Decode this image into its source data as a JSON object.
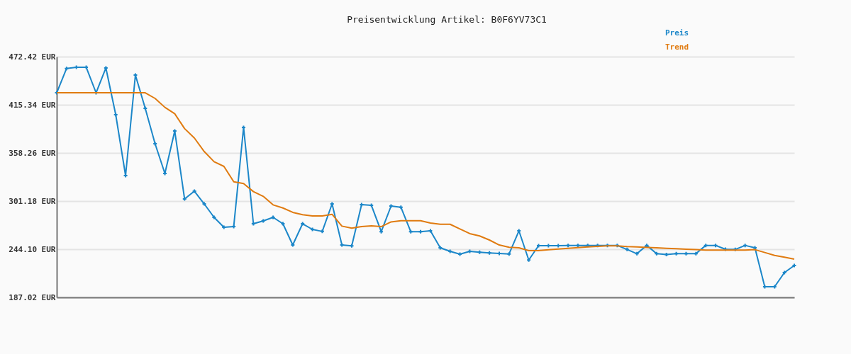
{
  "chart_data": {
    "type": "line",
    "title": "Preisentwicklung Artikel: B0F6YV73C1",
    "categories": [
      null,
      null,
      null,
      null,
      null,
      null,
      null,
      null,
      null,
      null,
      null,
      null,
      null,
      null,
      null,
      null,
      null,
      null,
      null,
      null,
      null,
      null,
      null,
      null,
      null,
      null,
      null,
      null,
      null,
      null,
      null,
      null,
      null,
      null,
      null,
      null,
      null,
      null,
      null,
      null,
      null,
      null,
      null,
      null,
      null,
      null,
      null,
      null,
      null,
      null,
      null,
      null,
      null,
      null,
      null,
      null,
      null,
      null,
      null,
      null,
      null,
      null,
      null,
      null,
      null,
      null,
      null,
      null,
      null,
      null,
      null,
      null,
      null,
      null,
      null,
      null
    ],
    "series": [
      {
        "name": "Preis",
        "color": "#1c87c9",
        "marker": "cross",
        "values": [
          429.6,
          458.4,
          459.8,
          459.8,
          429.6,
          459.0,
          403.6,
          331.4,
          450.6,
          411.1,
          369.2,
          333.9,
          384.3,
          303.7,
          312.9,
          297.8,
          281.9,
          270.1,
          271.0,
          388.5,
          274.3,
          277.7,
          281.9,
          274.3,
          249.1,
          274.3,
          267.6,
          265.2,
          297.8,
          249.1,
          248.1,
          297.0,
          296.1,
          264.9,
          295.3,
          293.9,
          264.9,
          264.9,
          265.9,
          245.8,
          241.6,
          238.2,
          241.6,
          240.5,
          239.7,
          239.1,
          238.5,
          265.9,
          231.3,
          248.3,
          248.3,
          248.3,
          248.6,
          248.6,
          248.6,
          248.6,
          248.6,
          248.6,
          243.8,
          238.8,
          248.6,
          238.8,
          237.9,
          238.8,
          238.8,
          238.8,
          248.6,
          248.6,
          244.1,
          243.8,
          248.6,
          245.8,
          199.6,
          199.6,
          216.4,
          224.8
        ]
      },
      {
        "name": "Trend",
        "color": "#e07b10",
        "marker": "none",
        "values": [
          429.6,
          429.6,
          429.6,
          429.6,
          429.6,
          429.6,
          429.6,
          429.6,
          429.6,
          429.6,
          422.9,
          412.3,
          404.7,
          387.1,
          375.9,
          359.9,
          347.9,
          342.3,
          324.1,
          321.9,
          312.4,
          306.8,
          296.7,
          293.0,
          287.8,
          285.0,
          283.5,
          283.5,
          285.5,
          271.5,
          269.0,
          270.9,
          271.8,
          270.9,
          276.5,
          277.9,
          277.9,
          277.9,
          275.2,
          273.7,
          273.7,
          268.2,
          262.6,
          259.8,
          255.0,
          249.1,
          246.4,
          245.8,
          242.4,
          242.4,
          243.5,
          244.4,
          245.2,
          246.0,
          246.9,
          247.4,
          248.0,
          248.0,
          247.2,
          246.9,
          246.3,
          245.8,
          245.2,
          244.7,
          244.1,
          243.6,
          243.0,
          243.0,
          243.0,
          243.0,
          243.0,
          243.6,
          240.2,
          236.8,
          234.6,
          232.4
        ]
      }
    ],
    "ylim": [
      187.02,
      472.42
    ],
    "yticks": [
      {
        "value": 187.02,
        "label": "187.02 EUR"
      },
      {
        "value": 244.1,
        "label": "244.10 EUR"
      },
      {
        "value": 301.18,
        "label": "301.18 EUR"
      },
      {
        "value": 358.26,
        "label": "358.26 EUR"
      },
      {
        "value": 415.34,
        "label": "415.34 EUR"
      },
      {
        "value": 472.42,
        "label": "472.42 EUR"
      }
    ],
    "grid": "y",
    "legend": "top right",
    "line_style": "solid"
  }
}
